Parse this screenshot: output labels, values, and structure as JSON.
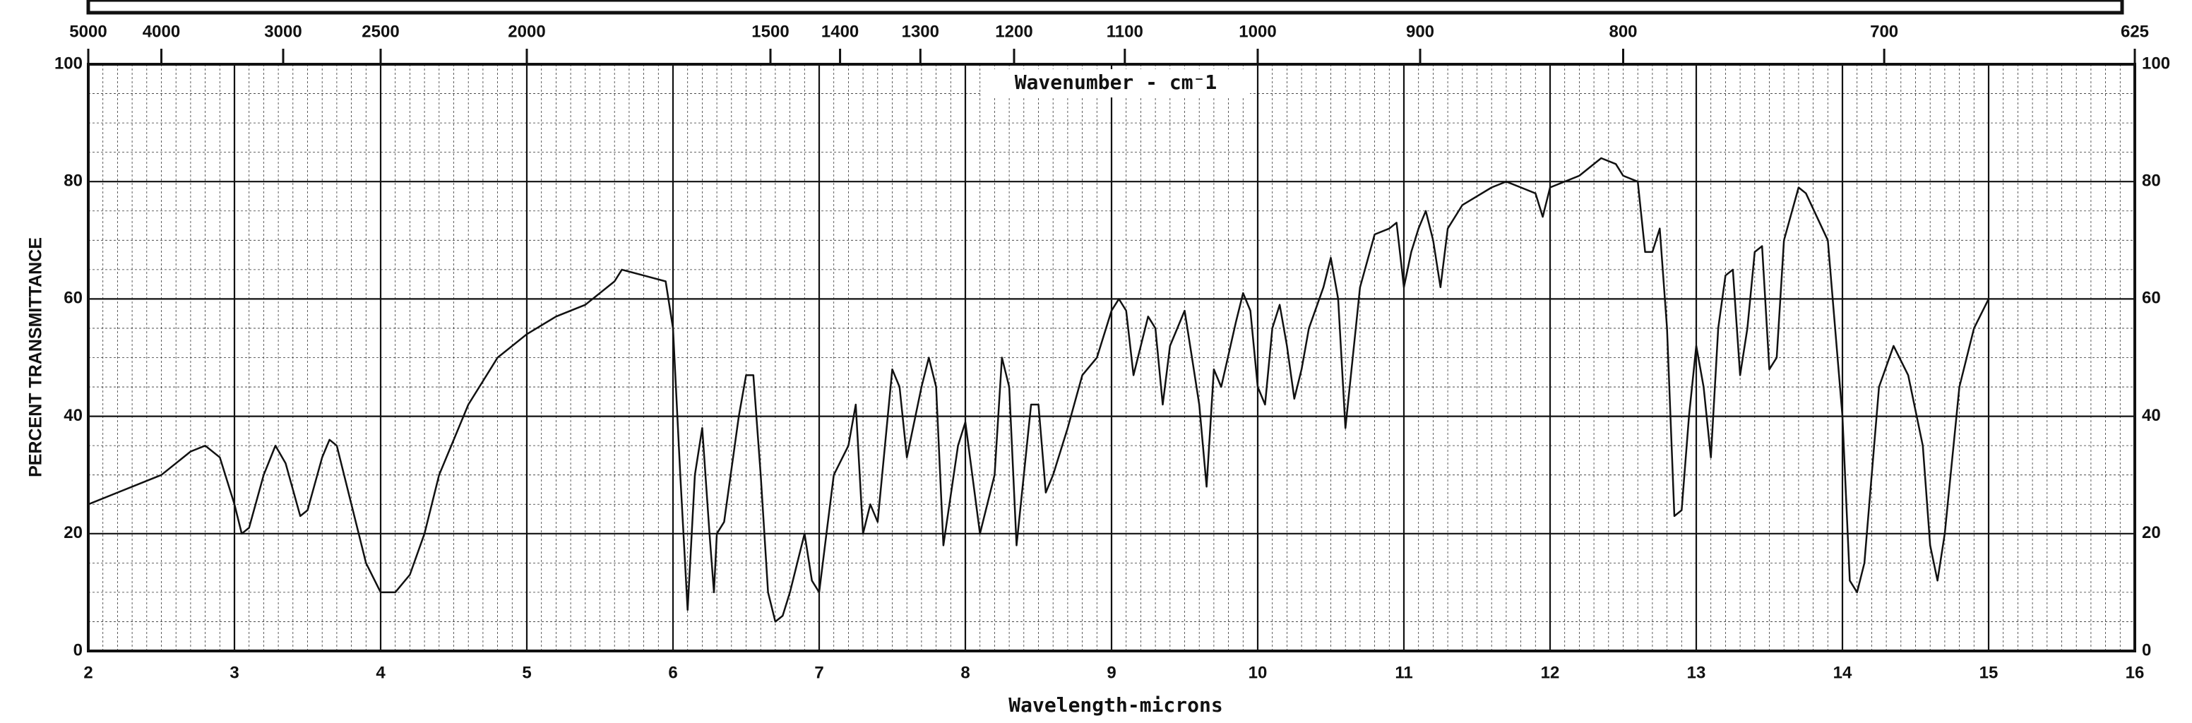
{
  "chart_data": {
    "type": "line",
    "title": "Wavenumber - cm⁻1",
    "x_label": "Wavelength-microns",
    "y_label": "PERCENT TRANSMITTANCE",
    "xlim": [
      2,
      16
    ],
    "xticks": [
      2,
      3,
      4,
      5,
      6,
      7,
      8,
      9,
      10,
      11,
      12,
      13,
      14,
      15,
      16
    ],
    "ylim": [
      0,
      100
    ],
    "yticks": [
      0,
      20,
      40,
      60,
      80,
      100
    ],
    "x2lim": [
      5000,
      625
    ],
    "x2ticks": [
      5000,
      4000,
      3000,
      2500,
      2000,
      1500,
      1400,
      1300,
      1200,
      1100,
      1000,
      900,
      800,
      700,
      625
    ],
    "grid": true,
    "series": [
      {
        "color": "#111111",
        "x": [
          2.0,
          2.2,
          2.3,
          2.5,
          2.7,
          2.8,
          2.9,
          3.0,
          3.05,
          3.1,
          3.2,
          3.28,
          3.35,
          3.45,
          3.5,
          3.6,
          3.65,
          3.7,
          3.8,
          3.9,
          4.0,
          4.1,
          4.2,
          4.3,
          4.4,
          4.6,
          4.8,
          5.0,
          5.2,
          5.4,
          5.6,
          5.65,
          5.8,
          5.95,
          6.0,
          6.05,
          6.1,
          6.15,
          6.2,
          6.25,
          6.28,
          6.3,
          6.35,
          6.45,
          6.5,
          6.55,
          6.6,
          6.65,
          6.7,
          6.75,
          6.8,
          6.9,
          6.95,
          7.0,
          7.05,
          7.1,
          7.2,
          7.25,
          7.3,
          7.35,
          7.4,
          7.5,
          7.55,
          7.6,
          7.7,
          7.75,
          7.8,
          7.85,
          7.95,
          8.0,
          8.1,
          8.2,
          8.25,
          8.3,
          8.35,
          8.45,
          8.5,
          8.55,
          8.6,
          8.7,
          8.8,
          8.9,
          9.0,
          9.05,
          9.1,
          9.15,
          9.25,
          9.3,
          9.35,
          9.4,
          9.45,
          9.5,
          9.55,
          9.6,
          9.65,
          9.7,
          9.75,
          9.85,
          9.9,
          9.95,
          10.0,
          10.05,
          10.1,
          10.15,
          10.2,
          10.25,
          10.3,
          10.35,
          10.45,
          10.5,
          10.55,
          10.6,
          10.7,
          10.8,
          10.9,
          10.95,
          11.0,
          11.05,
          11.1,
          11.15,
          11.2,
          11.25,
          11.3,
          11.4,
          11.6,
          11.7,
          11.9,
          11.95,
          12.0,
          12.2,
          12.35,
          12.45,
          12.5,
          12.6,
          12.65,
          12.7,
          12.75,
          12.8,
          12.85,
          12.9,
          12.95,
          13.0,
          13.05,
          13.1,
          13.15,
          13.2,
          13.25,
          13.3,
          13.35,
          13.4,
          13.45,
          13.5,
          13.55,
          13.6,
          13.7,
          13.75,
          13.9,
          14.0,
          14.05,
          14.1,
          14.15,
          14.25,
          14.35,
          14.45,
          14.55,
          14.6,
          14.65,
          14.7,
          14.8,
          14.9,
          15.0
        ],
        "values": [
          25,
          27,
          28,
          30,
          34,
          35,
          33,
          25,
          20,
          21,
          30,
          35,
          32,
          23,
          24,
          33,
          36,
          35,
          25,
          15,
          10,
          10,
          13,
          20,
          30,
          42,
          50,
          54,
          57,
          59,
          63,
          65,
          64,
          63,
          55,
          30,
          7,
          30,
          38,
          20,
          10,
          20,
          22,
          40,
          47,
          47,
          30,
          10,
          5,
          6,
          10,
          20,
          12,
          10,
          20,
          30,
          35,
          42,
          20,
          25,
          22,
          48,
          45,
          33,
          45,
          50,
          45,
          18,
          35,
          39,
          20,
          30,
          50,
          45,
          18,
          42,
          42,
          27,
          30,
          38,
          47,
          50,
          58,
          60,
          58,
          47,
          57,
          55,
          42,
          52,
          55,
          58,
          50,
          42,
          28,
          48,
          45,
          56,
          61,
          58,
          45,
          42,
          55,
          59,
          52,
          43,
          48,
          55,
          62,
          67,
          60,
          38,
          62,
          71,
          72,
          73,
          62,
          68,
          72,
          75,
          70,
          62,
          72,
          76,
          79,
          80,
          78,
          74,
          79,
          81,
          84,
          83,
          81,
          80,
          68,
          68,
          72,
          55,
          23,
          24,
          40,
          52,
          45,
          33,
          55,
          64,
          65,
          47,
          55,
          68,
          69,
          48,
          50,
          70,
          79,
          78,
          70,
          40,
          12,
          10,
          15,
          45,
          52,
          47,
          35,
          18,
          12,
          20,
          45,
          55,
          60
        ]
      }
    ]
  }
}
